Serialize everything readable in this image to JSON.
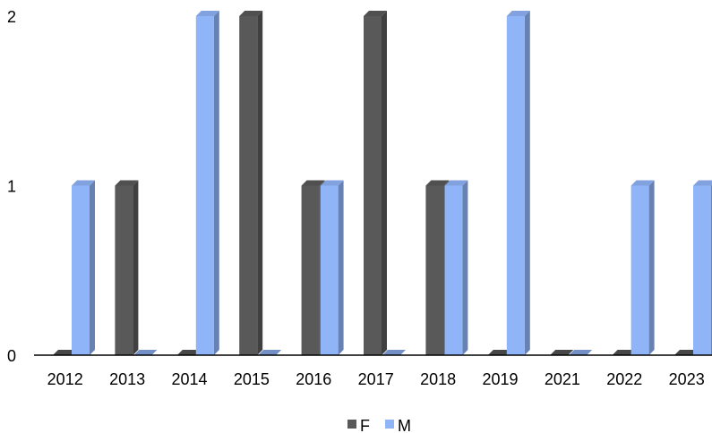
{
  "chart_data": {
    "type": "bar",
    "categories": [
      "2012",
      "2013",
      "2014",
      "2015",
      "2016",
      "2017",
      "2018",
      "2019",
      "2021",
      "2022",
      "2023"
    ],
    "series": [
      {
        "name": "F",
        "values": [
          0,
          1,
          0,
          2,
          1,
          2,
          1,
          0,
          0,
          0,
          0
        ],
        "color": "#595959"
      },
      {
        "name": "M",
        "values": [
          1,
          0,
          2,
          0,
          1,
          0,
          1,
          2,
          0,
          1,
          1
        ],
        "color": "#8fb4f7"
      }
    ],
    "ylim": [
      0,
      2
    ],
    "yticks": [
      "0",
      "1",
      "2"
    ],
    "grid": false,
    "legend_position": "bottom",
    "style": "3d-clustered-bar"
  }
}
